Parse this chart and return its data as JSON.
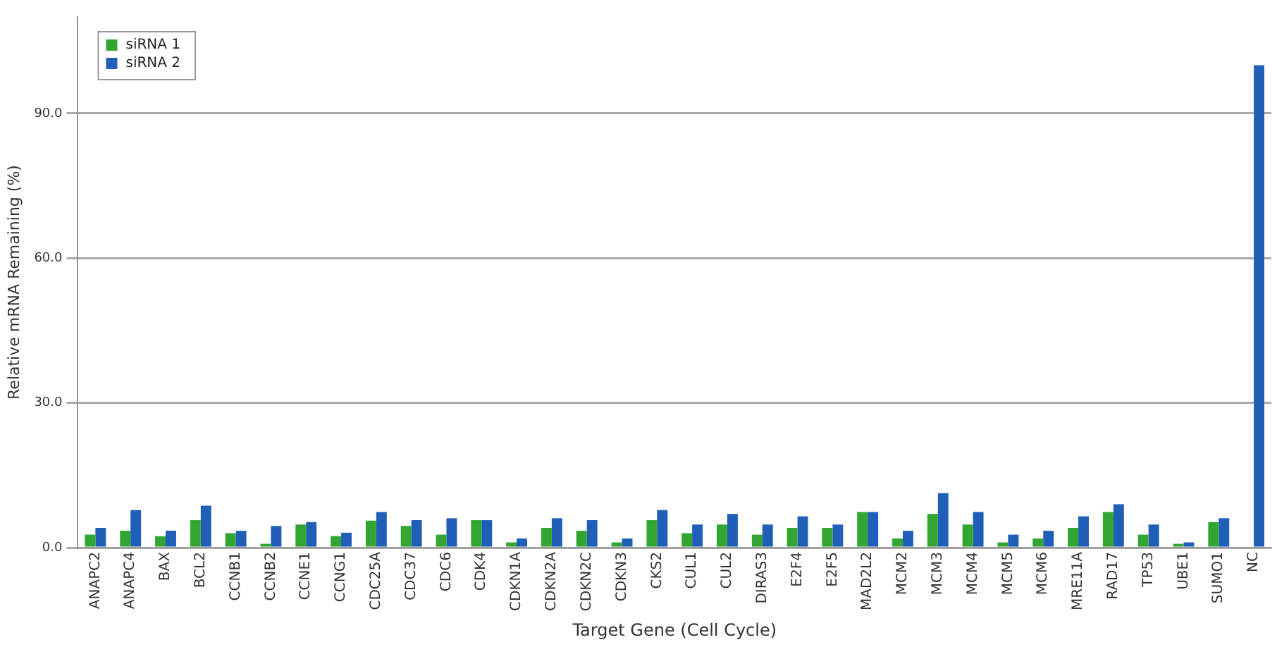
{
  "chart_data": {
    "type": "bar",
    "xlabel": "Target Gene (Cell Cycle)",
    "ylabel": "Relative mRNA Remaining (%)",
    "categories": [
      "ANAPC2",
      "ANAPC4",
      "BAX",
      "BCL2",
      "CCNB1",
      "CCNB2",
      "CCNE1",
      "CCNG1",
      "CDC25A",
      "CDC37",
      "CDC6",
      "CDK4",
      "CDKN1A",
      "CDKN2A",
      "CDKN2C",
      "CDKN3",
      "CKS2",
      "CUL1",
      "CUL2",
      "DIRAS3",
      "E2F4",
      "E2F5",
      "MAD2L2",
      "MCM2",
      "MCM3",
      "MCM4",
      "MCM5",
      "MCM6",
      "MRE11A",
      "RAD17",
      "TP53",
      "UBE1",
      "SUMO1",
      "NC"
    ],
    "series": [
      {
        "name": "siRNA 1",
        "color": "#33a532",
        "values": [
          2.7,
          3.5,
          2.4,
          5.7,
          3.0,
          0.8,
          4.8,
          2.4,
          5.6,
          4.5,
          2.7,
          5.7,
          1.1,
          4.1,
          3.5,
          1.1,
          5.7,
          3.0,
          4.8,
          2.7,
          4.1,
          4.1,
          7.4,
          1.9,
          7.0,
          4.8,
          1.1,
          1.9,
          4.1,
          7.4,
          2.7,
          0.8,
          5.3,
          null
        ]
      },
      {
        "name": "siRNA 2",
        "color": "#1f5fb8",
        "values": [
          4.1,
          7.8,
          3.5,
          8.7,
          3.5,
          4.5,
          5.3,
          3.1,
          7.4,
          5.7,
          6.1,
          5.7,
          1.9,
          6.1,
          5.7,
          1.9,
          7.8,
          4.8,
          7.0,
          4.8,
          6.5,
          4.8,
          7.4,
          3.5,
          11.3,
          7.4,
          2.7,
          3.5,
          6.5,
          9.0,
          4.8,
          1.1,
          6.1,
          100
        ]
      }
    ],
    "ylim": [
      0,
      110
    ],
    "yticks": [
      {
        "value": 0,
        "label": "0.0"
      },
      {
        "value": 30,
        "label": "30.0"
      },
      {
        "value": 60,
        "label": "60.0"
      },
      {
        "value": 90,
        "label": "90.0"
      }
    ],
    "grid": "y",
    "legend": "top left"
  }
}
